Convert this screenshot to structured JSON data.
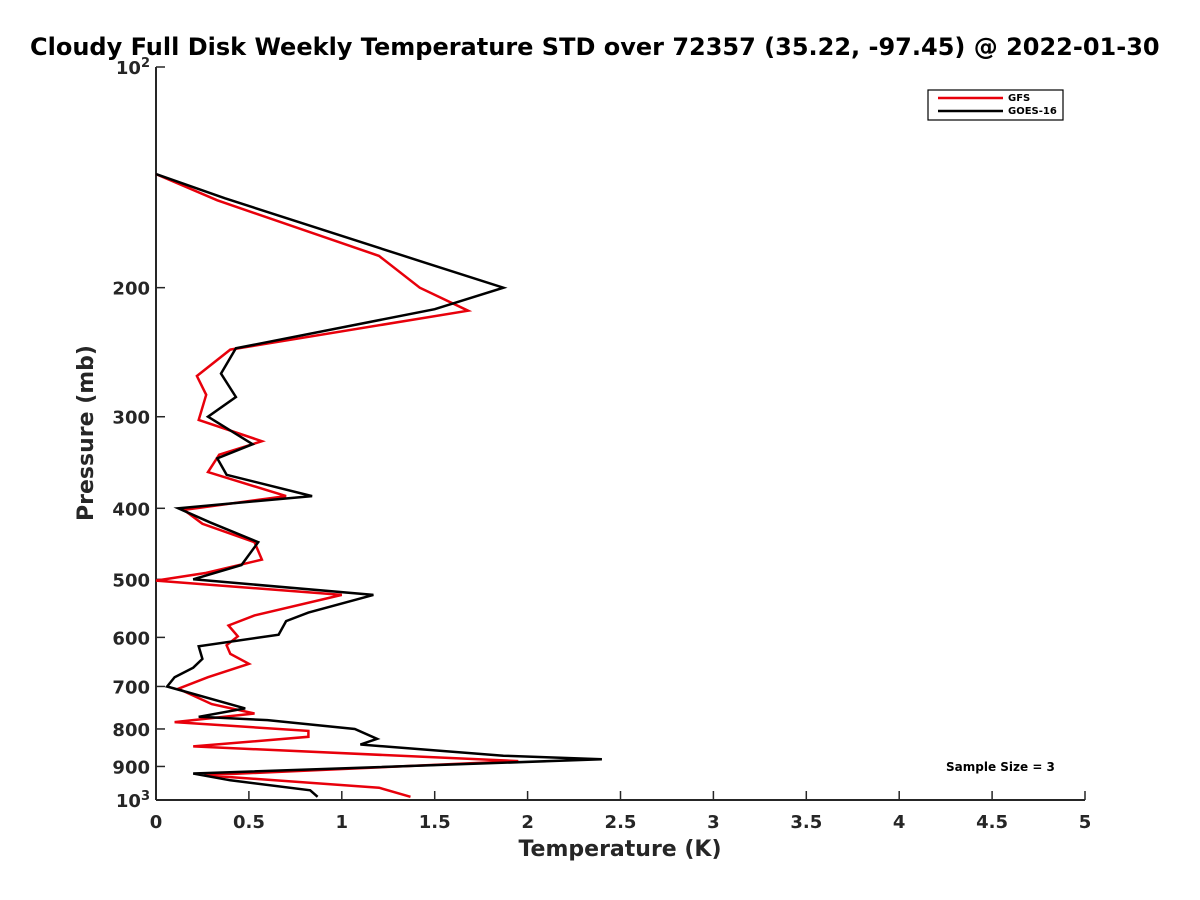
{
  "chart_data": {
    "type": "line",
    "title": "Cloudy Full Disk Weekly Temperature STD over 72357 (35.22, -97.45) @ 2022-01-30",
    "xlabel": "Temperature (K)",
    "ylabel": "Pressure (mb)",
    "xlim": [
      0,
      5
    ],
    "ylim": [
      1000,
      100
    ],
    "yscale": "log",
    "y_reversed": true,
    "x_ticks": [
      "0",
      "0.5",
      "1",
      "1.5",
      "2",
      "2.5",
      "3",
      "3.5",
      "4",
      "4.5",
      "5"
    ],
    "y_ticks": [
      {
        "value": 100,
        "base": "10",
        "exp": "2"
      },
      {
        "value": 200,
        "label": "200"
      },
      {
        "value": 300,
        "label": "300"
      },
      {
        "value": 400,
        "label": "400"
      },
      {
        "value": 500,
        "label": "500"
      },
      {
        "value": 600,
        "label": "600"
      },
      {
        "value": 700,
        "label": "700"
      },
      {
        "value": 800,
        "label": "800"
      },
      {
        "value": 900,
        "label": "900"
      },
      {
        "value": 1000,
        "base": "10",
        "exp": "3"
      }
    ],
    "grid": false,
    "legend_position": "top-right",
    "annotation": "Sample Size = 3",
    "series": [
      {
        "name": "GFS",
        "color": "#e8000b",
        "points": [
          [
            0.0,
            140
          ],
          [
            0.33,
            152
          ],
          [
            1.2,
            181
          ],
          [
            1.42,
            200
          ],
          [
            1.68,
            215
          ],
          [
            0.4,
            243
          ],
          [
            0.22,
            264
          ],
          [
            0.27,
            280
          ],
          [
            0.23,
            303
          ],
          [
            0.57,
            324
          ],
          [
            0.34,
            338
          ],
          [
            0.28,
            357
          ],
          [
            0.7,
            385
          ],
          [
            0.15,
            402
          ],
          [
            0.25,
            420
          ],
          [
            0.53,
            445
          ],
          [
            0.57,
            470
          ],
          [
            0.27,
            490
          ],
          [
            0.0,
            502
          ],
          [
            1.0,
            525
          ],
          [
            0.53,
            560
          ],
          [
            0.39,
            578
          ],
          [
            0.44,
            598
          ],
          [
            0.38,
            615
          ],
          [
            0.4,
            632
          ],
          [
            0.5,
            652
          ],
          [
            0.28,
            680
          ],
          [
            0.12,
            705
          ],
          [
            0.3,
            740
          ],
          [
            0.53,
            762
          ],
          [
            0.1,
            783
          ],
          [
            0.82,
            805
          ],
          [
            0.82,
            820
          ],
          [
            0.2,
            845
          ],
          [
            1.95,
            885
          ],
          [
            0.26,
            925
          ],
          [
            1.2,
            962
          ],
          [
            1.37,
            990
          ]
        ]
      },
      {
        "name": "GOES-16",
        "color": "#000000",
        "points": [
          [
            0.0,
            140
          ],
          [
            0.37,
            151
          ],
          [
            1.45,
            185
          ],
          [
            1.87,
            200
          ],
          [
            1.5,
            214
          ],
          [
            0.43,
            242
          ],
          [
            0.35,
            262
          ],
          [
            0.43,
            282
          ],
          [
            0.28,
            300
          ],
          [
            0.52,
            327
          ],
          [
            0.33,
            342
          ],
          [
            0.38,
            360
          ],
          [
            0.84,
            385
          ],
          [
            0.12,
            400
          ],
          [
            0.29,
            418
          ],
          [
            0.55,
            445
          ],
          [
            0.46,
            478
          ],
          [
            0.2,
            500
          ],
          [
            1.17,
            525
          ],
          [
            0.82,
            555
          ],
          [
            0.7,
            570
          ],
          [
            0.66,
            595
          ],
          [
            0.23,
            617
          ],
          [
            0.25,
            642
          ],
          [
            0.2,
            660
          ],
          [
            0.1,
            680
          ],
          [
            0.06,
            700
          ],
          [
            0.48,
            750
          ],
          [
            0.23,
            770
          ],
          [
            0.6,
            778
          ],
          [
            1.07,
            800
          ],
          [
            1.19,
            825
          ],
          [
            1.1,
            840
          ],
          [
            1.87,
            870
          ],
          [
            2.4,
            880
          ],
          [
            0.2,
            920
          ],
          [
            0.4,
            940
          ],
          [
            0.83,
            970
          ],
          [
            0.87,
            990
          ]
        ]
      }
    ]
  }
}
